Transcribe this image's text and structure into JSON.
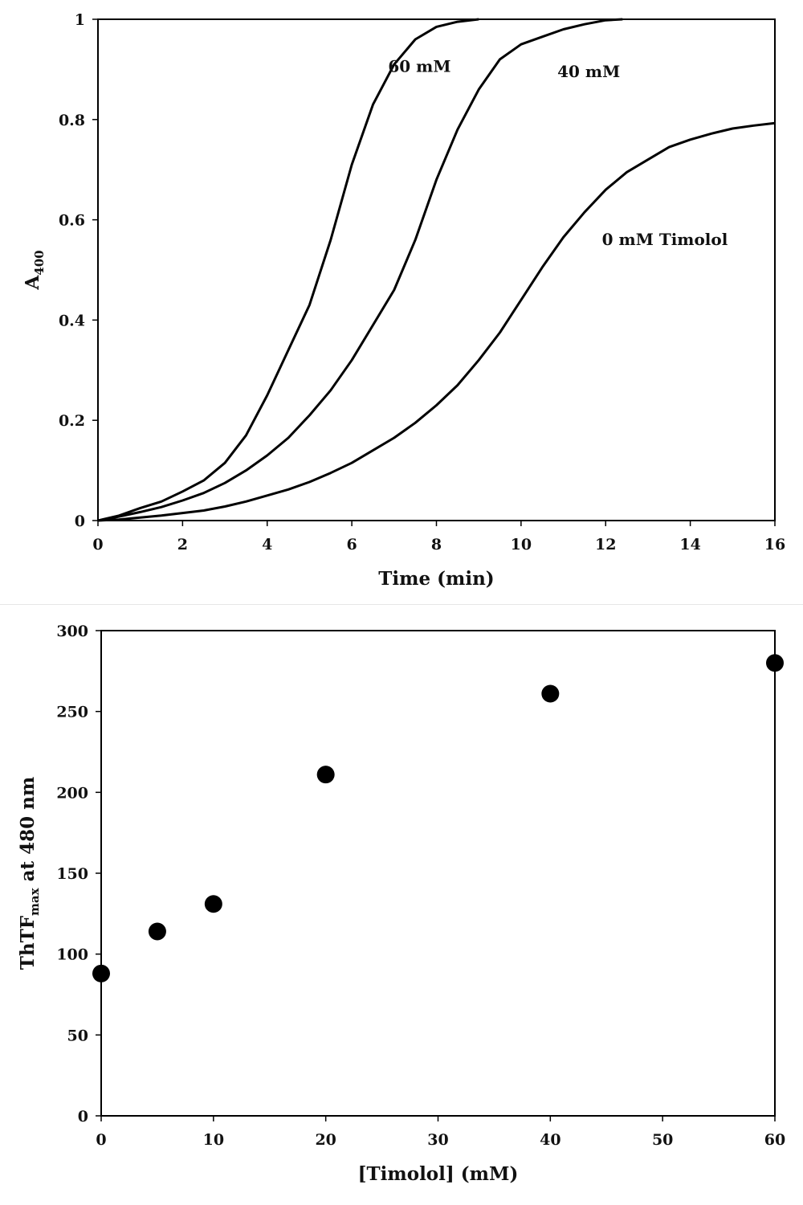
{
  "chart_data": [
    {
      "type": "line",
      "title": "",
      "xlabel": "Time (min)",
      "ylabel": "A",
      "ylabel_sub": "400",
      "xlim": [
        0,
        16
      ],
      "ylim": [
        0,
        1
      ],
      "x_ticks": [
        "0",
        "2",
        "4",
        "6",
        "8",
        "10",
        "12",
        "14",
        "16"
      ],
      "y_ticks": [
        "0",
        "0.2",
        "0.4",
        "0.6",
        "0.8",
        "1"
      ],
      "grid": false,
      "legend": "none",
      "series": [
        {
          "name": "60 mM",
          "color": "#000000",
          "x": [
            0,
            0.5,
            1,
            1.5,
            2,
            2.5,
            3,
            3.5,
            4,
            4.5,
            5,
            5.5,
            6,
            6.5,
            7,
            7.5,
            8,
            8.5,
            9
          ],
          "y": [
            0,
            0.01,
            0.025,
            0.038,
            0.058,
            0.08,
            0.115,
            0.17,
            0.25,
            0.34,
            0.43,
            0.56,
            0.71,
            0.83,
            0.91,
            0.96,
            0.985,
            0.995,
            1.0
          ]
        },
        {
          "name": "40 mM",
          "color": "#000000",
          "x": [
            0,
            0.5,
            1,
            1.5,
            2,
            2.5,
            3,
            3.5,
            4,
            4.5,
            5,
            5.5,
            6,
            6.5,
            7,
            7.5,
            8,
            8.5,
            9,
            9.5,
            10,
            10.5,
            11,
            11.5,
            12,
            12.4
          ],
          "y": [
            0,
            0.008,
            0.017,
            0.027,
            0.04,
            0.055,
            0.075,
            0.1,
            0.13,
            0.165,
            0.21,
            0.26,
            0.32,
            0.39,
            0.46,
            0.56,
            0.68,
            0.78,
            0.86,
            0.92,
            0.95,
            0.965,
            0.98,
            0.99,
            0.998,
            1.0
          ]
        },
        {
          "name": "0 mM Timolol",
          "color": "#000000",
          "x": [
            0,
            0.5,
            1,
            1.5,
            2,
            2.5,
            3,
            3.5,
            4,
            4.5,
            5,
            5.5,
            6,
            6.5,
            7,
            7.5,
            8,
            8.5,
            9,
            9.5,
            10,
            10.5,
            11,
            11.5,
            12,
            12.5,
            13,
            13.5,
            14,
            14.5,
            15,
            15.5,
            16
          ],
          "y": [
            0,
            0.002,
            0.006,
            0.01,
            0.015,
            0.02,
            0.028,
            0.038,
            0.05,
            0.062,
            0.077,
            0.095,
            0.115,
            0.14,
            0.165,
            0.195,
            0.23,
            0.27,
            0.32,
            0.375,
            0.44,
            0.505,
            0.565,
            0.615,
            0.66,
            0.695,
            0.72,
            0.745,
            0.76,
            0.772,
            0.782,
            0.788,
            0.793
          ]
        }
      ],
      "annotations": [
        {
          "text": "60 mM",
          "x": 7.6,
          "y": 0.895
        },
        {
          "text": "40 mM",
          "x": 11.6,
          "y": 0.885
        },
        {
          "text": "0 mM Timolol",
          "x": 13.4,
          "y": 0.55
        }
      ]
    },
    {
      "type": "scatter",
      "title": "",
      "xlabel": "[Timolol] (mM)",
      "ylabel": "ThTF",
      "ylabel_sub": "max",
      "ylabel_rest": " at 480 nm",
      "xlim": [
        0,
        60
      ],
      "ylim": [
        0,
        300
      ],
      "x_ticks": [
        "0",
        "10",
        "20",
        "30",
        "40",
        "50",
        "60"
      ],
      "y_ticks": [
        "0",
        "50",
        "100",
        "150",
        "200",
        "250",
        "300"
      ],
      "grid": false,
      "legend": "none",
      "series": [
        {
          "color": "#000000",
          "x": [
            0,
            5,
            10,
            20,
            40,
            60
          ],
          "y": [
            88,
            114,
            131,
            211,
            261,
            280
          ]
        }
      ]
    }
  ]
}
